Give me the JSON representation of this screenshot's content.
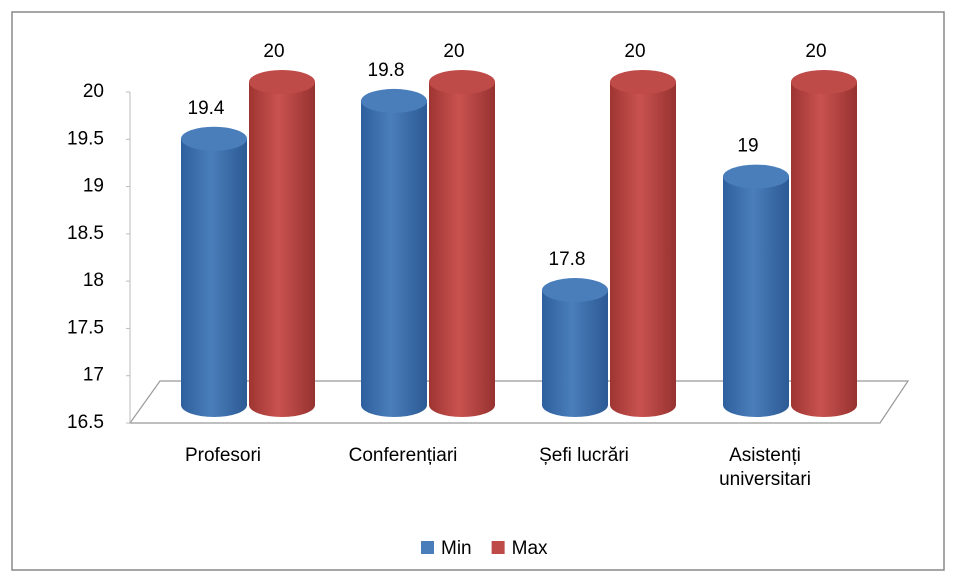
{
  "chart_data": {
    "type": "bar3d",
    "categories": [
      "Profesori",
      "Conferențiari",
      "Șefi lucrări",
      "Asistenți universitari"
    ],
    "series": [
      {
        "name": "Min",
        "color": "#4a7ebb",
        "values": [
          19.4,
          19.8,
          17.8,
          19
        ]
      },
      {
        "name": "Max",
        "color": "#be4b48",
        "values": [
          20,
          20,
          20,
          20
        ]
      }
    ],
    "ylim": [
      16.5,
      20
    ],
    "yticks": [
      16.5,
      17,
      17.5,
      18,
      18.5,
      19,
      19.5,
      20
    ],
    "legend": "bottom"
  }
}
